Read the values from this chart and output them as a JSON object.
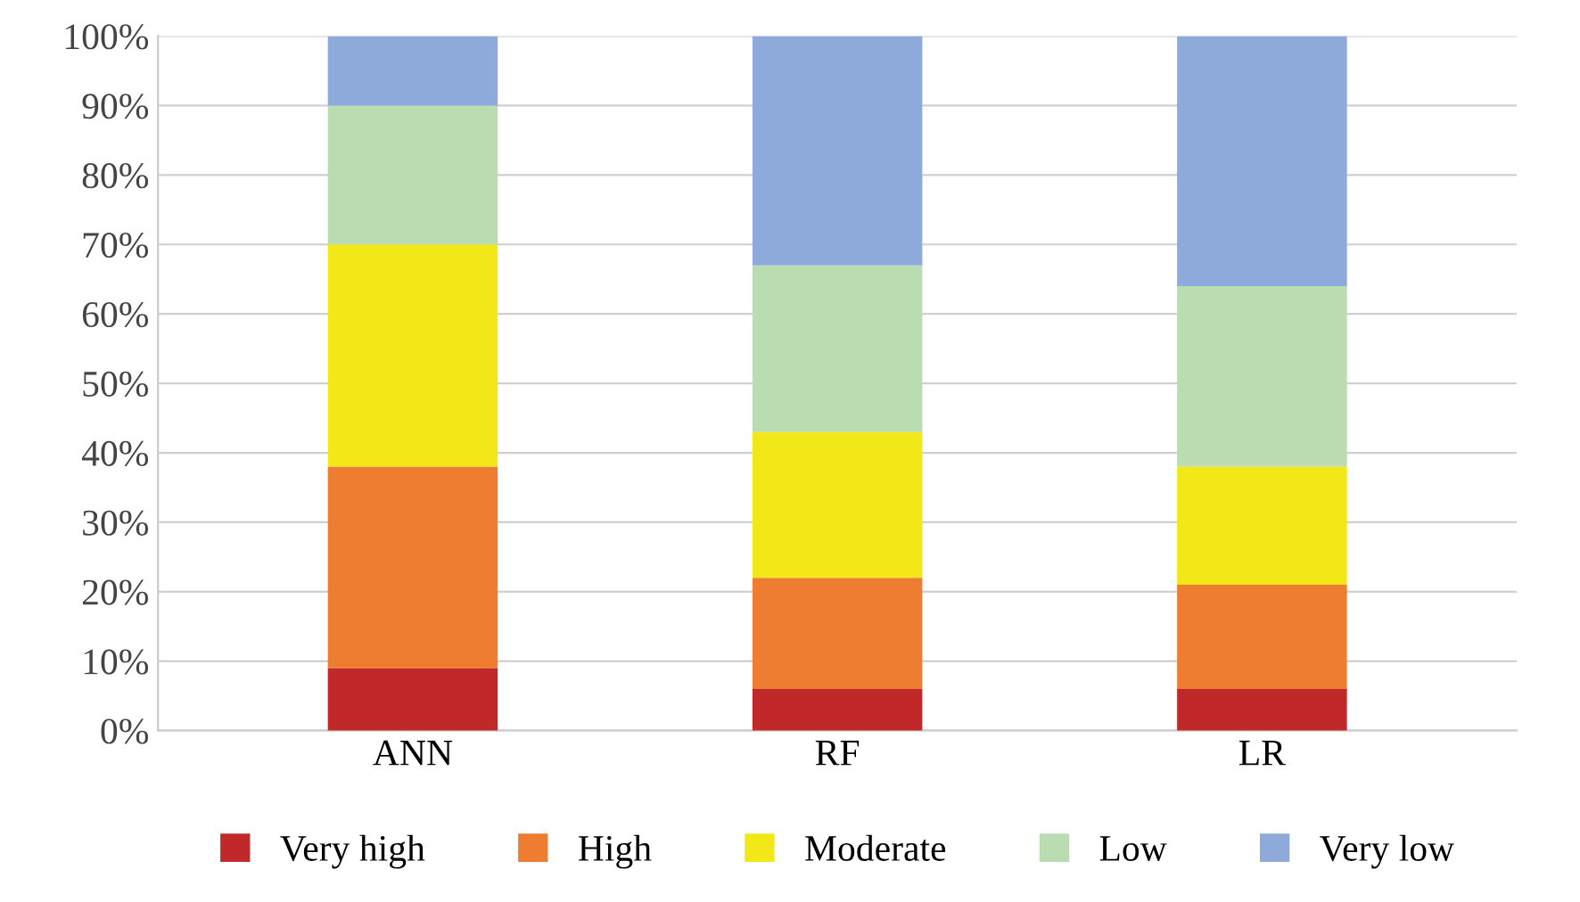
{
  "chart_data": {
    "type": "bar",
    "stacked": true,
    "categories": [
      "ANN",
      "RF",
      "LR"
    ],
    "series": [
      {
        "name": "Very high",
        "color": "#c0282a",
        "values": [
          9,
          6,
          6
        ]
      },
      {
        "name": "High",
        "color": "#ee7d31",
        "values": [
          29,
          16,
          15
        ]
      },
      {
        "name": "Moderate",
        "color": "#f2e817",
        "values": [
          32,
          21,
          17
        ]
      },
      {
        "name": "Low",
        "color": "#b9dcb0",
        "values": [
          20,
          24,
          26
        ]
      },
      {
        "name": "Very low",
        "color": "#8eaadb",
        "values": [
          10,
          33,
          36
        ]
      }
    ],
    "ylim": [
      0,
      100
    ],
    "yticks": [
      {
        "value": 0,
        "label": "0%"
      },
      {
        "value": 10,
        "label": "10%"
      },
      {
        "value": 20,
        "label": "20%"
      },
      {
        "value": 30,
        "label": "30%"
      },
      {
        "value": 40,
        "label": "40%"
      },
      {
        "value": 50,
        "label": "50%"
      },
      {
        "value": 60,
        "label": "60%"
      },
      {
        "value": 70,
        "label": "70%"
      },
      {
        "value": 80,
        "label": "80%"
      },
      {
        "value": 90,
        "label": "90%"
      },
      {
        "value": 100,
        "label": "100%"
      }
    ],
    "grid": "y",
    "legend": "bottom"
  }
}
